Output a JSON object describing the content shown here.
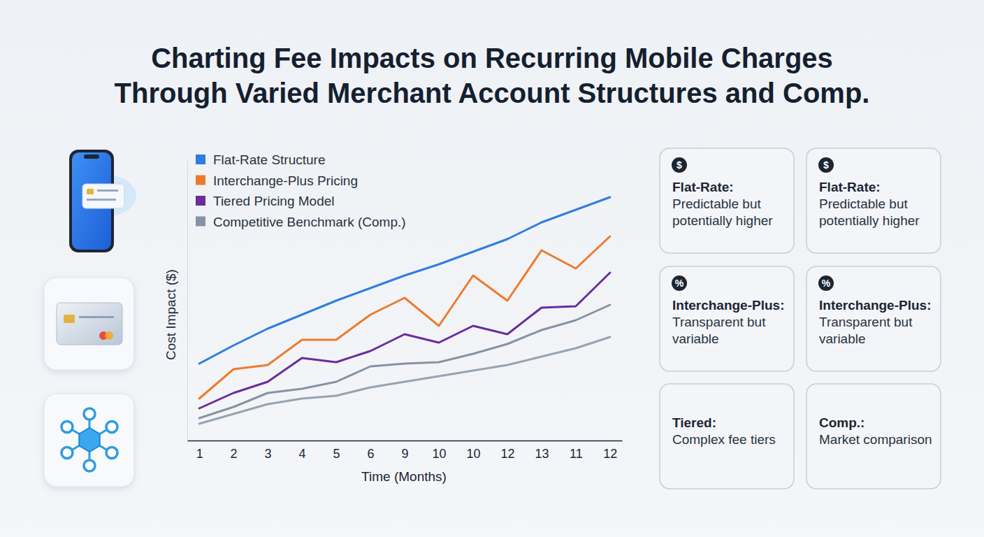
{
  "chart_data": {
    "type": "line",
    "title": "Charting Fee Impacts on Recurring Mobile Charges Through Varied Merchant Account Structures and Comp.",
    "x_label": "Time (Months)",
    "y_label": "Cost Impact ($)",
    "categories": [
      "1",
      "2",
      "3",
      "4",
      "5",
      "6",
      "9",
      "10",
      "10",
      "12",
      "13",
      "11",
      "12"
    ],
    "series": [
      {
        "name": "Flat-Rate Structure",
        "color": "#2f7de1",
        "values": [
          27.5,
          34,
          40,
          45,
          50,
          54.5,
          59,
          63,
          67.5,
          72,
          78,
          82.5,
          87
        ]
      },
      {
        "name": "Interchange-Plus Pricing",
        "color": "#ef7a2b",
        "values": [
          15,
          25.5,
          27,
          36,
          36,
          45,
          51,
          41,
          59,
          50,
          68,
          61.5,
          73
        ]
      },
      {
        "name": "Tiered Pricing Model",
        "color": "#6b2c9c",
        "values": [
          11.5,
          17,
          21,
          29.5,
          28,
          32,
          38,
          35,
          41,
          38,
          47.5,
          48,
          60
        ]
      },
      {
        "name": "Competitive Benchmark (Comp.)",
        "color": "#8693a2",
        "values": [
          8,
          12,
          17,
          18.5,
          21,
          26.5,
          27.5,
          28,
          31,
          34.5,
          39.5,
          43,
          48.5
        ]
      },
      {
        "color": "#97a3b1",
        "values": [
          6,
          9.5,
          13,
          15,
          16,
          19,
          21,
          23,
          25,
          27,
          30,
          33,
          37
        ]
      }
    ],
    "ylim": [
      0,
      100
    ],
    "grid": false,
    "legend": "top-left",
    "tick_labels": "x"
  },
  "cards": [
    {
      "icon": "$",
      "title": "Flat-Rate:",
      "text": "Predictable but potentially higher"
    },
    {
      "icon": "$",
      "title": "Flat-Rate:",
      "text": "Predictable but potentially higher"
    },
    {
      "icon": "%",
      "title": "Interchange-Plus:",
      "text": "Transparent but variable"
    },
    {
      "icon": "%",
      "title": "Interchange-Plus:",
      "text": "Transparent but variable"
    },
    {
      "title": "Tiered:",
      "text": "Complex fee tiers"
    },
    {
      "title": "Comp.:",
      "text": "Market comparison"
    }
  ]
}
